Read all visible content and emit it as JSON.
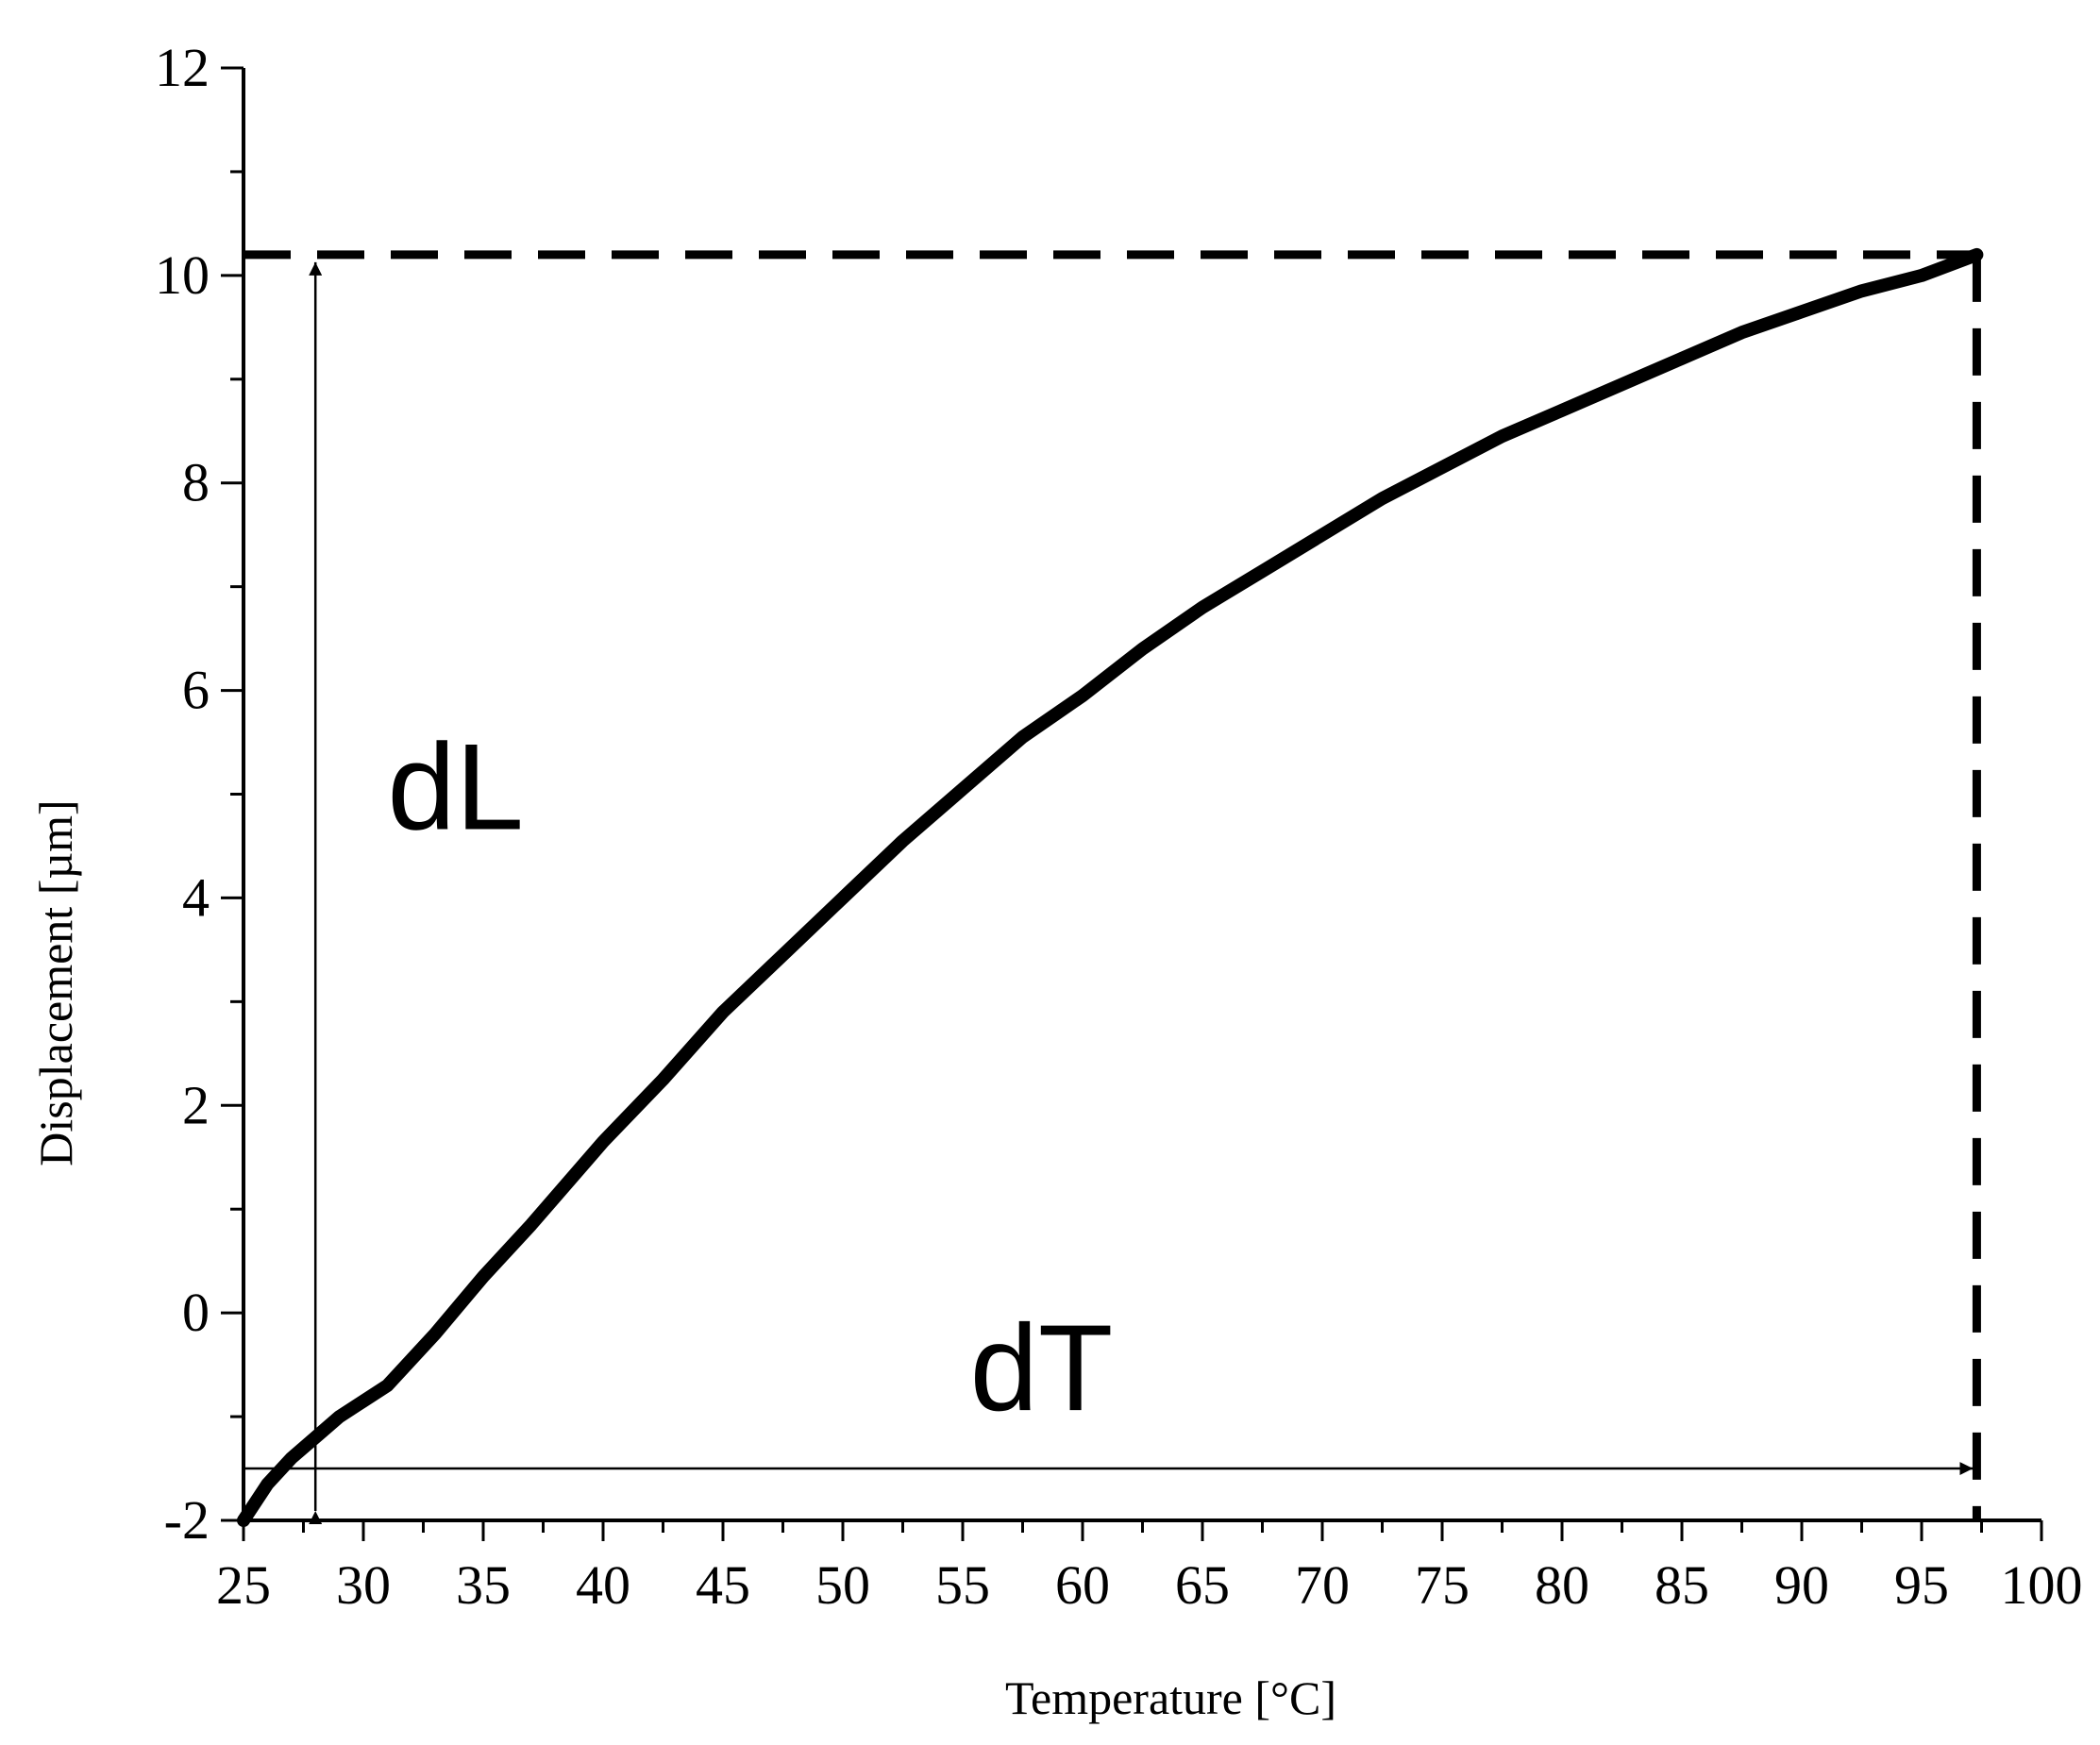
{
  "chart_data": {
    "type": "line",
    "title": "",
    "xlabel": "Temperature [°C]",
    "ylabel": "Displacement [µm]",
    "xlim": [
      25,
      100
    ],
    "ylim": [
      -2,
      12
    ],
    "xticks": [
      25,
      30,
      35,
      40,
      45,
      50,
      55,
      60,
      65,
      70,
      75,
      80,
      85,
      90,
      95,
      100
    ],
    "yticks": [
      -2,
      0,
      2,
      4,
      6,
      8,
      10,
      12
    ],
    "grid": false,
    "series": [
      {
        "name": "displacement",
        "x": [
          25,
          26,
          27,
          28,
          29,
          30,
          31,
          32,
          33,
          35,
          37,
          40,
          42.5,
          45,
          47.5,
          50,
          52.5,
          55,
          57.5,
          60,
          62.5,
          65,
          67.5,
          70,
          72.5,
          75,
          77.5,
          80,
          82.5,
          85,
          87.5,
          90,
          92.5,
          95,
          97.3
        ],
        "y": [
          -2.0,
          -1.65,
          -1.4,
          -1.2,
          -1.0,
          -0.85,
          -0.7,
          -0.45,
          -0.2,
          0.35,
          0.85,
          1.65,
          2.25,
          2.9,
          3.45,
          4.0,
          4.55,
          5.05,
          5.55,
          5.95,
          6.4,
          6.8,
          7.15,
          7.5,
          7.85,
          8.15,
          8.45,
          8.7,
          8.95,
          9.2,
          9.45,
          9.65,
          9.85,
          10.0,
          10.2
        ]
      }
    ],
    "reference_lines": {
      "horizontal_y": 10.2,
      "vertical_x": 97.3
    },
    "annotations": [
      {
        "text": "dL",
        "arrow": "vertical",
        "at_x": 28,
        "from_y": -2,
        "to_y": 10.2,
        "label_x": 31,
        "label_y": 5.1
      },
      {
        "text": "dT",
        "arrow": "horizontal",
        "at_y": -1.5,
        "from_x": 25,
        "to_x": 97.3,
        "label_x": 55.3,
        "label_y": -0.5
      }
    ]
  }
}
